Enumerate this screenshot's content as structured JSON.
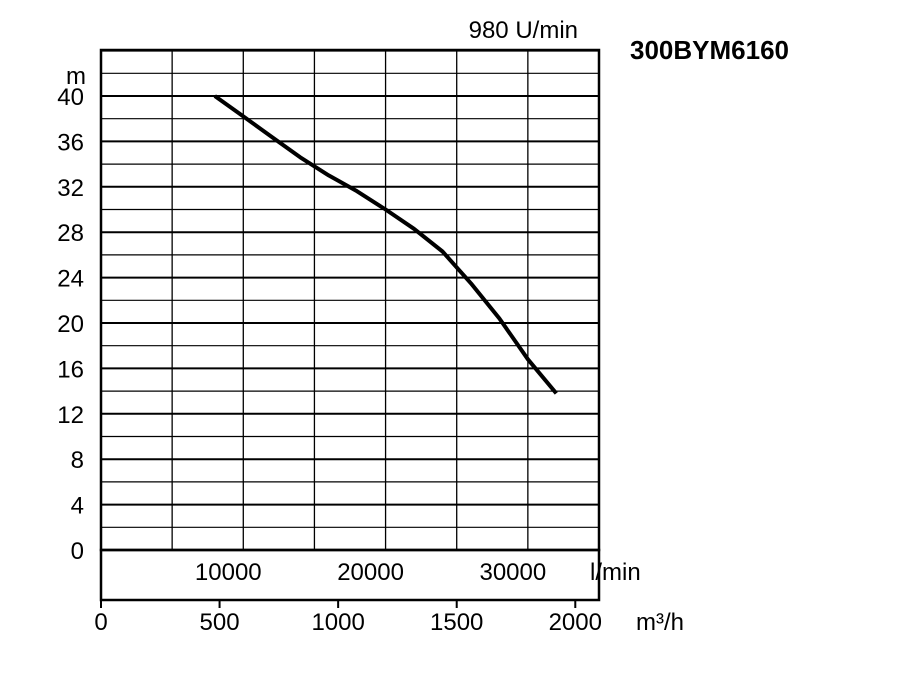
{
  "chart_data": {
    "type": "line",
    "title": "300BYM6160",
    "speed_label": "980 U/min",
    "ylabel": "m",
    "xlabel_lmin": "l/min",
    "xlabel_m3h": "m³/h",
    "ylim": [
      0,
      40
    ],
    "xlim_lmin": [
      0,
      35000
    ],
    "yticks": [
      "0",
      "4",
      "8",
      "12",
      "16",
      "20",
      "24",
      "28",
      "32",
      "36",
      "40"
    ],
    "xticks_lmin": [
      {
        "value": 10000,
        "label": "10000"
      },
      {
        "value": 20000,
        "label": "20000"
      },
      {
        "value": 30000,
        "label": "30000"
      }
    ],
    "xticks_m3h": [
      {
        "value": 0,
        "label": "0"
      },
      {
        "value": 500,
        "label": "500"
      },
      {
        "value": 1000,
        "label": "1000"
      },
      {
        "value": 1500,
        "label": "1500"
      },
      {
        "value": 2000,
        "label": "2000"
      }
    ],
    "grid": true,
    "series": [
      {
        "x": [
          8000,
          10000,
          12000,
          14000,
          16000,
          18000,
          20000,
          22000,
          24000,
          26000,
          28000,
          30000,
          32000
        ],
        "y": [
          40,
          38.2,
          36.4,
          34.6,
          33,
          31.6,
          30,
          28.3,
          26.3,
          23.5,
          20.4,
          16.8,
          13.8
        ]
      }
    ]
  }
}
